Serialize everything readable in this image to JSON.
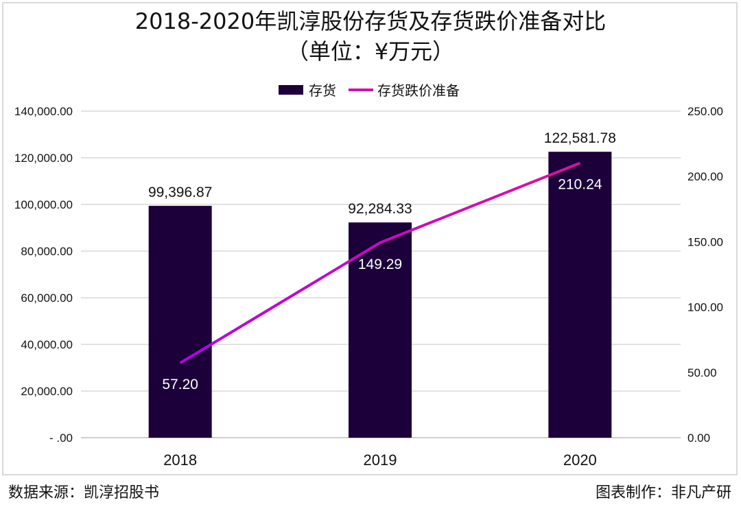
{
  "chart_data": {
    "type": "bar+line",
    "title": "2018-2020年凯淳股份存货及存货跌价准备对比",
    "subtitle": "（单位：¥万元）",
    "categories": [
      "2018",
      "2019",
      "2020"
    ],
    "series": [
      {
        "name": "存货",
        "type": "bar",
        "axis": "left",
        "values": [
          99396.87,
          92284.33,
          122581.78
        ],
        "labels": [
          "99,396.87",
          "92,284.33",
          "122,581.78"
        ],
        "color": "#1b0039"
      },
      {
        "name": "存货跌价准备",
        "type": "line",
        "axis": "right",
        "values": [
          57.2,
          149.29,
          210.24
        ],
        "labels": [
          "57.20",
          "149.29",
          "210.24"
        ],
        "color": "#e0109a",
        "color_start": "#b400e6"
      }
    ],
    "y_left": {
      "ylim": [
        0,
        140000
      ],
      "ticks": [
        "- .00",
        "20,000.00",
        "40,000.00",
        "60,000.00",
        "80,000.00",
        "100,000.00",
        "120,000.00",
        "140,000.00"
      ]
    },
    "y_right": {
      "ylim": [
        0,
        250
      ],
      "ticks": [
        "0.00",
        "50.00",
        "100.00",
        "150.00",
        "200.00",
        "250.00"
      ]
    },
    "grid": true,
    "legend": "top-center"
  },
  "footer": {
    "source": "数据来源：凯淳招股书",
    "credit": "图表制作：非凡产研"
  }
}
